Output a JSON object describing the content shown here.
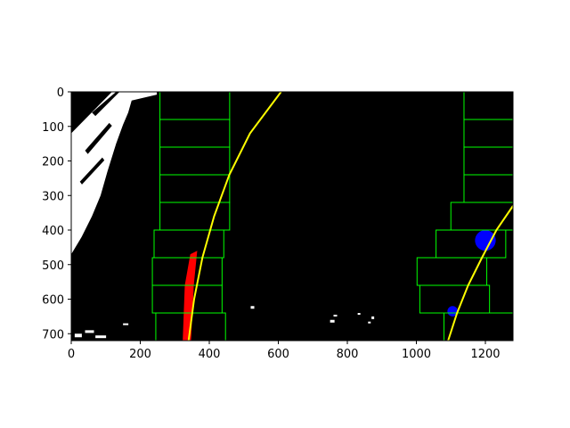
{
  "chart_data": {
    "type": "image",
    "xlim": [
      0,
      1280
    ],
    "ylim": [
      720,
      0
    ],
    "x_ticks": [
      0,
      200,
      400,
      600,
      800,
      1000,
      1200
    ],
    "x_tick_labels": [
      "0",
      "200",
      "400",
      "600",
      "800",
      "1000",
      "1200"
    ],
    "y_ticks": [
      0,
      100,
      200,
      300,
      400,
      500,
      600,
      700
    ],
    "y_tick_labels": [
      "0",
      "100",
      "200",
      "300",
      "400",
      "500",
      "600",
      "700"
    ],
    "background_color": "#000000",
    "left_windows": [
      {
        "x0": 257,
        "x1": 459,
        "y0": 0,
        "y1": 80
      },
      {
        "x0": 257,
        "x1": 459,
        "y0": 80,
        "y1": 160
      },
      {
        "x0": 257,
        "x1": 459,
        "y0": 160,
        "y1": 240
      },
      {
        "x0": 257,
        "x1": 459,
        "y0": 240,
        "y1": 320
      },
      {
        "x0": 257,
        "x1": 459,
        "y0": 320,
        "y1": 400
      },
      {
        "x0": 240,
        "x1": 442,
        "y0": 400,
        "y1": 480
      },
      {
        "x0": 235,
        "x1": 437,
        "y0": 480,
        "y1": 560
      },
      {
        "x0": 235,
        "x1": 437,
        "y0": 560,
        "y1": 640
      },
      {
        "x0": 245,
        "x1": 447,
        "y0": 640,
        "y1": 720
      }
    ],
    "right_windows": [
      {
        "x0": 1138,
        "x1": 1280,
        "y0": 0,
        "y1": 80
      },
      {
        "x0": 1138,
        "x1": 1280,
        "y0": 80,
        "y1": 160
      },
      {
        "x0": 1138,
        "x1": 1280,
        "y0": 160,
        "y1": 240
      },
      {
        "x0": 1138,
        "x1": 1280,
        "y0": 240,
        "y1": 320
      },
      {
        "x0": 1100,
        "x1": 1280,
        "y0": 320,
        "y1": 400
      },
      {
        "x0": 1057,
        "x1": 1259,
        "y0": 400,
        "y1": 480
      },
      {
        "x0": 1002,
        "x1": 1204,
        "y0": 480,
        "y1": 560
      },
      {
        "x0": 1010,
        "x1": 1212,
        "y0": 560,
        "y1": 640
      },
      {
        "x0": 1080,
        "x1": 1282,
        "y0": 640,
        "y1": 720
      }
    ],
    "left_fit": {
      "color": "#ffff00",
      "points": [
        [
          340,
          720
        ],
        [
          356,
          600
        ],
        [
          380,
          480
        ],
        [
          414,
          360
        ],
        [
          458,
          240
        ],
        [
          518,
          120
        ],
        [
          608,
          0
        ]
      ]
    },
    "right_fit": {
      "color": "#ffff00",
      "points": [
        [
          1092,
          720
        ],
        [
          1118,
          640
        ],
        [
          1150,
          560
        ],
        [
          1190,
          480
        ],
        [
          1232,
          400
        ],
        [
          1280,
          330
        ]
      ]
    },
    "left_lane_pixels": {
      "color": "#ff0000",
      "y_range": [
        460,
        720
      ],
      "x_approx": 335
    },
    "right_lane_pixels": {
      "color": "#0000ff",
      "regions": [
        [
          1090,
          620,
          1120,
          650
        ],
        [
          1170,
          400,
          1230,
          460
        ]
      ]
    },
    "window_color": "#00ff00",
    "white_noise_color": "#ffffff"
  }
}
